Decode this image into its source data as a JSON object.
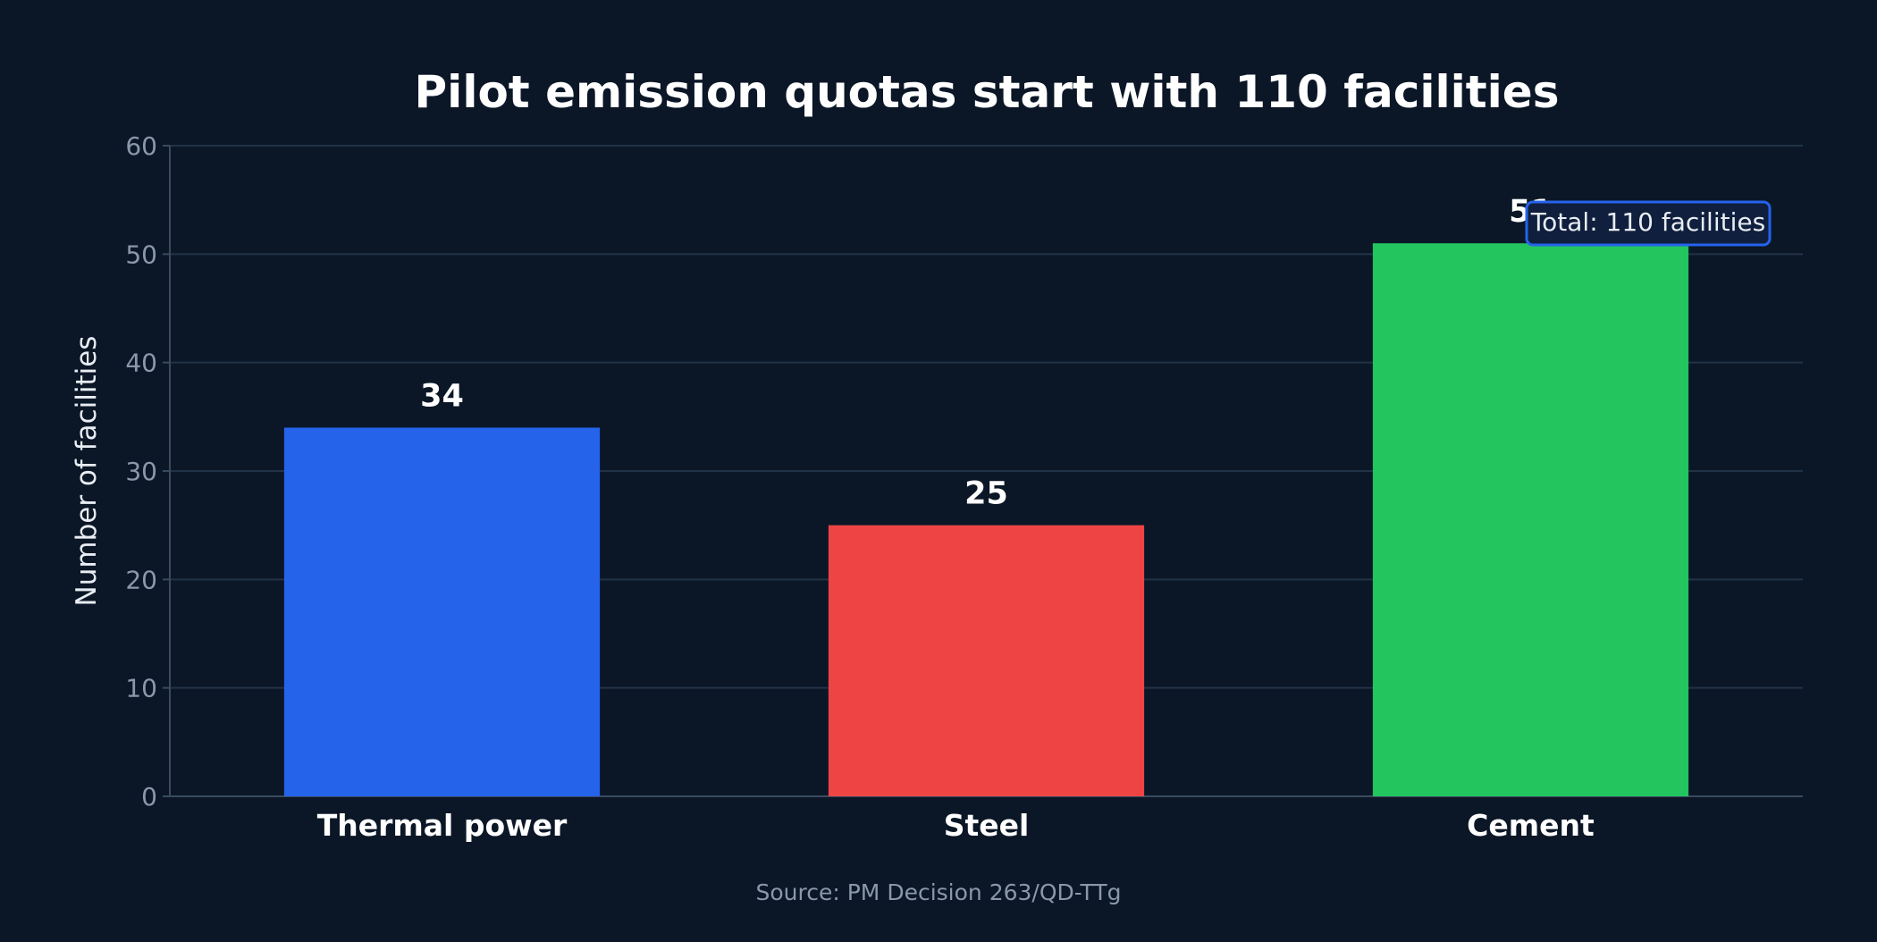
{
  "chart_data": {
    "type": "bar",
    "title": "Pilot emission quotas start with 110 facilities",
    "xlabel": "",
    "ylabel": "Number of facilities",
    "categories": [
      "Thermal power",
      "Steel",
      "Cement"
    ],
    "values": [
      34,
      25,
      51
    ],
    "value_labels": [
      "34",
      "25",
      "51"
    ],
    "colors": [
      "#2563eb",
      "#ef4444",
      "#22c55e"
    ],
    "ylim": [
      0,
      60
    ],
    "yticks": [
      0,
      10,
      20,
      30,
      40,
      50,
      60
    ],
    "grid": true,
    "annotation": "Total: 110 facilities",
    "source": "Source: PM Decision 263/QD-TTg"
  }
}
